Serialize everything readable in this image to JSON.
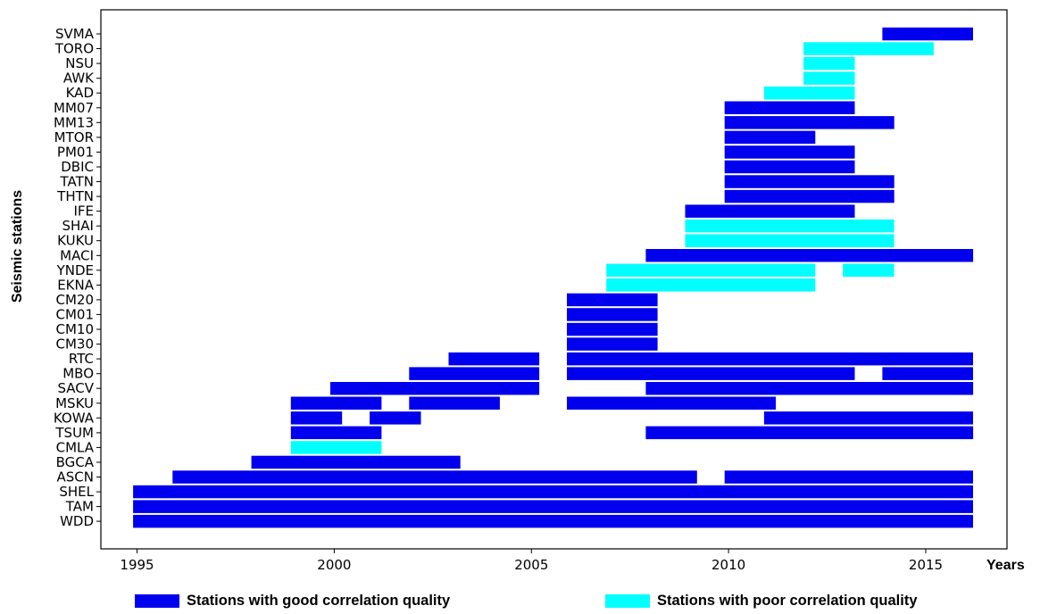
{
  "chart_data": {
    "type": "bar",
    "orientation": "horizontal-timeline",
    "xlabel": "Years",
    "ylabel": "Seismic stations",
    "xlim": [
      1994.1,
      2016.9
    ],
    "xticks": [
      1995,
      2000,
      2005,
      2010,
      2015
    ],
    "colors": {
      "good": "#0000ee",
      "poor": "#00ffff"
    },
    "legend": [
      {
        "key": "good",
        "label": "Stations with good correlation quality"
      },
      {
        "key": "poor",
        "label": "Stations with poor correlation quality"
      }
    ],
    "legend_position": "bottom",
    "grid": false,
    "stations": [
      {
        "name": "SVMA",
        "intervals": [
          [
            2013.9,
            2016.2,
            "good"
          ]
        ]
      },
      {
        "name": "TORO",
        "intervals": [
          [
            2011.9,
            2015.2,
            "poor"
          ]
        ]
      },
      {
        "name": "NSU",
        "intervals": [
          [
            2011.9,
            2013.2,
            "poor"
          ]
        ]
      },
      {
        "name": "AWK",
        "intervals": [
          [
            2011.9,
            2013.2,
            "poor"
          ]
        ]
      },
      {
        "name": "KAD",
        "intervals": [
          [
            2010.9,
            2013.2,
            "poor"
          ]
        ]
      },
      {
        "name": "MM07",
        "intervals": [
          [
            2009.9,
            2013.2,
            "good"
          ]
        ]
      },
      {
        "name": "MM13",
        "intervals": [
          [
            2009.9,
            2014.2,
            "good"
          ]
        ]
      },
      {
        "name": "MTOR",
        "intervals": [
          [
            2009.9,
            2012.2,
            "good"
          ]
        ]
      },
      {
        "name": "PM01",
        "intervals": [
          [
            2009.9,
            2013.2,
            "good"
          ]
        ]
      },
      {
        "name": "DBIC",
        "intervals": [
          [
            2009.9,
            2013.2,
            "good"
          ]
        ]
      },
      {
        "name": "TATN",
        "intervals": [
          [
            2009.9,
            2014.2,
            "good"
          ]
        ]
      },
      {
        "name": "THTN",
        "intervals": [
          [
            2009.9,
            2014.2,
            "good"
          ]
        ]
      },
      {
        "name": "IFE",
        "intervals": [
          [
            2008.9,
            2013.2,
            "good"
          ]
        ]
      },
      {
        "name": "SHAI",
        "intervals": [
          [
            2008.9,
            2014.2,
            "poor"
          ]
        ]
      },
      {
        "name": "KUKU",
        "intervals": [
          [
            2008.9,
            2014.2,
            "poor"
          ]
        ]
      },
      {
        "name": "MACI",
        "intervals": [
          [
            2007.9,
            2016.2,
            "good"
          ]
        ]
      },
      {
        "name": "YNDE",
        "intervals": [
          [
            2006.9,
            2012.2,
            "poor"
          ],
          [
            2012.9,
            2014.2,
            "poor"
          ]
        ]
      },
      {
        "name": "EKNA",
        "intervals": [
          [
            2006.9,
            2012.2,
            "poor"
          ]
        ]
      },
      {
        "name": "CM20",
        "intervals": [
          [
            2005.9,
            2008.2,
            "good"
          ]
        ]
      },
      {
        "name": "CM01",
        "intervals": [
          [
            2005.9,
            2008.2,
            "good"
          ]
        ]
      },
      {
        "name": "CM10",
        "intervals": [
          [
            2005.9,
            2008.2,
            "good"
          ]
        ]
      },
      {
        "name": "CM30",
        "intervals": [
          [
            2005.9,
            2008.2,
            "good"
          ]
        ]
      },
      {
        "name": "RTC",
        "intervals": [
          [
            2002.9,
            2005.2,
            "good"
          ],
          [
            2005.9,
            2016.2,
            "good"
          ]
        ]
      },
      {
        "name": "MBO",
        "intervals": [
          [
            2001.9,
            2005.2,
            "good"
          ],
          [
            2005.9,
            2013.2,
            "good"
          ],
          [
            2013.9,
            2016.2,
            "good"
          ]
        ]
      },
      {
        "name": "SACV",
        "intervals": [
          [
            1999.9,
            2005.2,
            "good"
          ],
          [
            2007.9,
            2016.2,
            "good"
          ]
        ]
      },
      {
        "name": "MSKU",
        "intervals": [
          [
            1998.9,
            2001.2,
            "good"
          ],
          [
            2001.9,
            2004.2,
            "good"
          ],
          [
            2005.9,
            2011.2,
            "good"
          ]
        ]
      },
      {
        "name": "KOWA",
        "intervals": [
          [
            1998.9,
            2000.2,
            "good"
          ],
          [
            2000.9,
            2002.2,
            "good"
          ],
          [
            2010.9,
            2016.2,
            "good"
          ]
        ]
      },
      {
        "name": "TSUM",
        "intervals": [
          [
            1998.9,
            2001.2,
            "good"
          ],
          [
            2007.9,
            2016.2,
            "good"
          ]
        ]
      },
      {
        "name": "CMLA",
        "intervals": [
          [
            1998.9,
            2001.2,
            "poor"
          ]
        ]
      },
      {
        "name": "BGCA",
        "intervals": [
          [
            1997.9,
            2003.2,
            "good"
          ]
        ]
      },
      {
        "name": "ASCN",
        "intervals": [
          [
            1995.9,
            2009.2,
            "good"
          ],
          [
            2009.9,
            2016.2,
            "good"
          ]
        ]
      },
      {
        "name": "SHEL",
        "intervals": [
          [
            1994.9,
            2016.2,
            "good"
          ]
        ]
      },
      {
        "name": "TAM",
        "intervals": [
          [
            1994.9,
            2016.2,
            "good"
          ]
        ]
      },
      {
        "name": "WDD",
        "intervals": [
          [
            1994.9,
            2016.2,
            "good"
          ]
        ]
      }
    ]
  }
}
